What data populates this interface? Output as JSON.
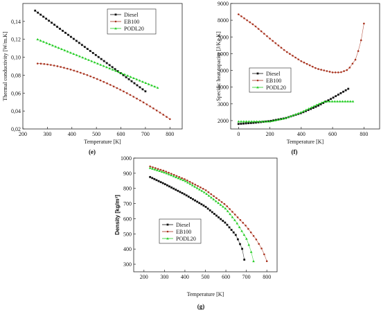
{
  "colors": {
    "diesel": "#111111",
    "eb100": "#a8321e",
    "podl20": "#22cc22",
    "axis": "#222222"
  },
  "chart_data": [
    {
      "id": "e",
      "type": "scatter",
      "caption": "(e)",
      "xlabel": "Temperature [K]",
      "ylabel": "Thermal conductivity [W/m.K]",
      "xlim": [
        200,
        850
      ],
      "ylim": [
        0.02,
        0.16
      ],
      "xticks": [
        "200",
        "300",
        "400",
        "500",
        "600",
        "700",
        "800"
      ],
      "yticks": [
        "0,02",
        "0,04",
        "0,06",
        "0,08",
        "0,10",
        "0,12",
        "0,14"
      ],
      "legend_position": "top-right",
      "series": [
        {
          "name": "Diesel",
          "x": [
            250,
            700
          ],
          "y": [
            0.152,
            0.062
          ],
          "curve": 1.0
        },
        {
          "name": "EB100",
          "x": [
            260,
            800
          ],
          "y": [
            0.093,
            0.031
          ],
          "curve": 1.6
        },
        {
          "name": "PODL20",
          "x": [
            260,
            750
          ],
          "y": [
            0.12,
            0.066
          ],
          "curve": 1.0
        }
      ]
    },
    {
      "id": "f",
      "type": "scatter",
      "caption": "(f)",
      "xlabel": "Temperature [K]",
      "ylabel": "Specific heat capacity [J/Kg.K]",
      "xlim": [
        -50,
        900
      ],
      "ylim": [
        1500,
        9000
      ],
      "xticks": [
        "0",
        "200",
        "400",
        "600",
        "800"
      ],
      "yticks": [
        "2000",
        "3000",
        "4000",
        "5000",
        "6000",
        "7000",
        "8000",
        "9000"
      ],
      "legend_position": "center-left",
      "series": [
        {
          "name": "Diesel",
          "x": [
            0,
            100,
            200,
            300,
            400,
            500,
            600,
            700
          ],
          "y": [
            1800,
            1870,
            1970,
            2150,
            2450,
            2850,
            3350,
            3900
          ]
        },
        {
          "name": "EB100",
          "x": [
            0,
            100,
            200,
            300,
            400,
            500,
            600,
            650,
            700,
            750,
            780,
            800
          ],
          "y": [
            8350,
            7700,
            6900,
            6150,
            5550,
            5100,
            4880,
            4880,
            5050,
            5700,
            6700,
            7800
          ]
        },
        {
          "name": "PODL20",
          "x": [
            0,
            100,
            200,
            300,
            400,
            500,
            550,
            600,
            700,
            730
          ],
          "y": [
            1950,
            1950,
            1950,
            2150,
            2500,
            2950,
            3150,
            3150,
            3150,
            3150
          ]
        }
      ]
    },
    {
      "id": "g",
      "type": "scatter",
      "caption": "(g)",
      "xlabel": "Temperature [K]",
      "ylabel": "Density [kg/m³]",
      "xlim": [
        150,
        850
      ],
      "ylim": [
        250,
        1000
      ],
      "xticks": [
        "200",
        "300",
        "400",
        "500",
        "600",
        "700",
        "800"
      ],
      "yticks": [
        "300",
        "400",
        "500",
        "600",
        "700",
        "800",
        "900",
        "1000"
      ],
      "legend_position": "center-left",
      "series": [
        {
          "name": "Diesel",
          "x": [
            230,
            300,
            400,
            500,
            600,
            650,
            680,
            690
          ],
          "y": [
            875,
            830,
            760,
            680,
            570,
            490,
            400,
            330
          ]
        },
        {
          "name": "EB100",
          "x": [
            230,
            300,
            400,
            500,
            600,
            700,
            750,
            780,
            800
          ],
          "y": [
            945,
            915,
            860,
            790,
            690,
            550,
            460,
            390,
            320
          ]
        },
        {
          "name": "PODL20",
          "x": [
            230,
            300,
            400,
            500,
            600,
            650,
            700,
            720,
            735
          ],
          "y": [
            935,
            905,
            850,
            770,
            665,
            580,
            470,
            400,
            320
          ]
        }
      ]
    }
  ]
}
